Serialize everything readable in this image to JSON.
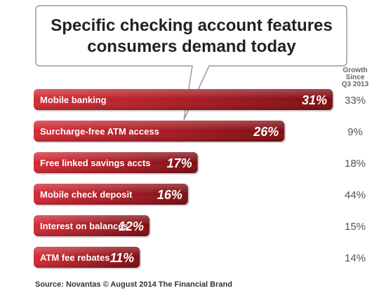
{
  "chart_data": {
    "type": "bar",
    "orientation": "horizontal",
    "title": "Specific checking account features consumers demand today",
    "title_lines": [
      "Specific checking account features",
      "consumers demand today"
    ],
    "categories": [
      "Mobile banking",
      "Surcharge-free ATM access",
      "Free linked savings accts",
      "Mobile check deposit",
      "Interest on balances",
      "ATM fee rebates"
    ],
    "series": [
      {
        "values": [
          31,
          26,
          17,
          16,
          12,
          11
        ]
      }
    ],
    "value_labels": [
      "31%",
      "26%",
      "17%",
      "16%",
      "12%",
      "11%"
    ],
    "growth_header": [
      "Growth",
      "Since",
      "Q3 2013"
    ],
    "growth_values": [
      33,
      9,
      18,
      44,
      15,
      14
    ],
    "growth_labels": [
      "33%",
      "9%",
      "18%",
      "44%",
      "15%",
      "14%"
    ],
    "xlim": [
      0,
      31
    ],
    "grid": false,
    "legend": "none",
    "source": "Source: Novantas © August 2014 The Financial Brand"
  },
  "colors": {
    "bar_light": "#d42a35",
    "bar_dark": "#7e0c12",
    "callout_border": "#9a9a9a",
    "background": "#ffffff"
  }
}
